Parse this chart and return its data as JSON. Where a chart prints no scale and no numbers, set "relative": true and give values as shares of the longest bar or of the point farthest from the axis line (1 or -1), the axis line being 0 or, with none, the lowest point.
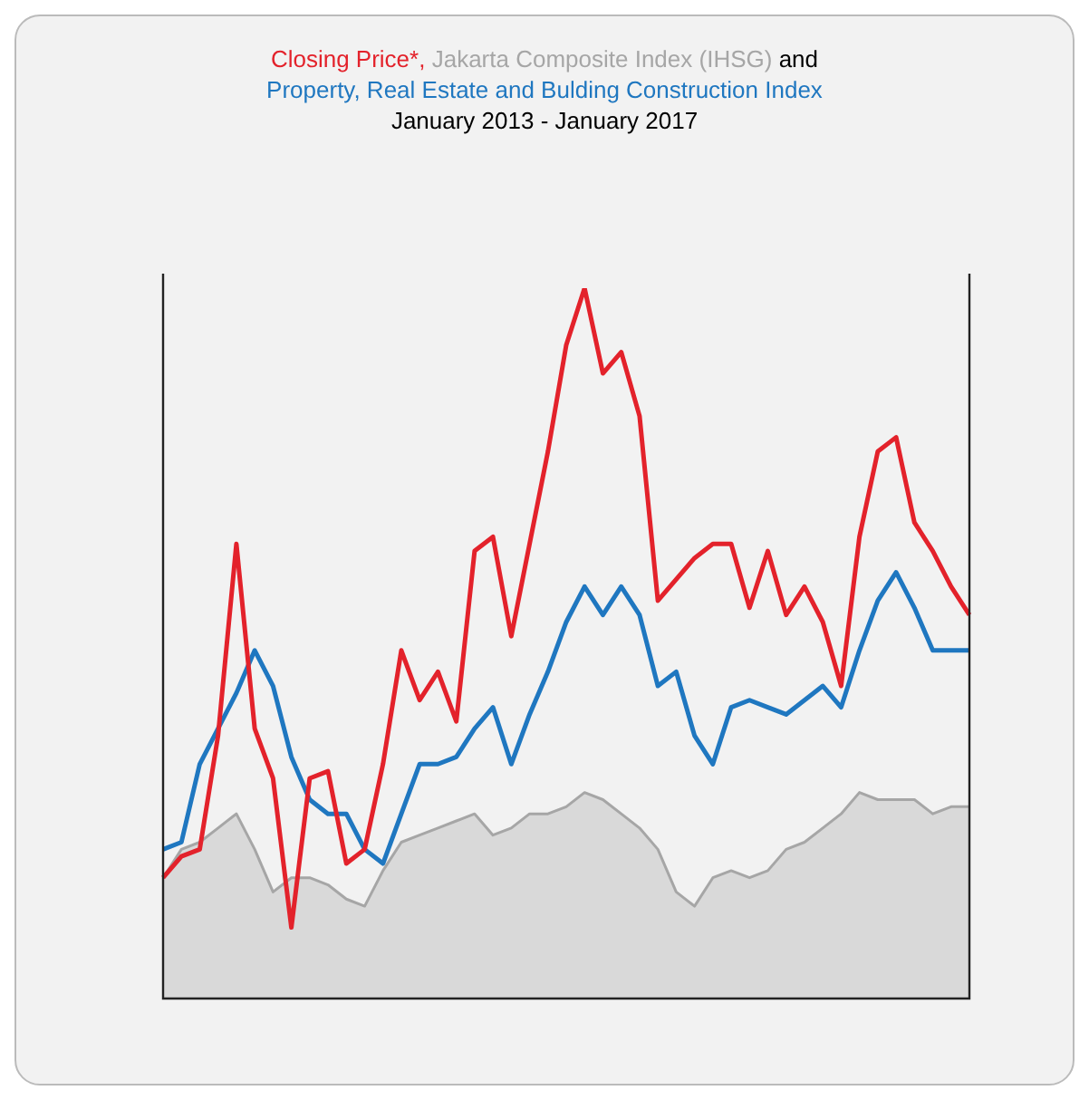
{
  "chart_data": {
    "type": "line",
    "title": "January 2013 - January 2017",
    "legend_title": "and",
    "legend": "top",
    "relative": true,
    "categories": [
      null,
      null,
      null,
      null,
      null,
      null,
      null,
      null,
      null,
      null,
      null,
      null,
      null,
      null,
      null,
      null,
      null,
      null,
      null,
      null,
      null,
      null,
      null,
      null,
      null,
      null,
      null,
      null,
      null,
      null,
      null,
      null,
      null,
      null,
      null,
      null,
      null,
      null,
      null,
      null,
      null,
      null,
      null,
      null,
      null
    ],
    "series": [
      {
        "name": "Closing Price*,",
        "color": "#e3222b",
        "values": [
          0.17,
          0.2,
          0.21,
          0.37,
          0.64,
          0.38,
          0.31,
          0.1,
          0.31,
          0.32,
          0.19,
          0.21,
          0.33,
          0.49,
          0.42,
          0.46,
          0.39,
          0.63,
          0.65,
          0.51,
          0.64,
          0.77,
          0.92,
          1,
          0.88,
          0.91,
          0.82,
          0.56,
          0.59,
          0.62,
          0.64,
          0.64,
          0.55,
          0.63,
          0.54,
          0.58,
          0.53,
          0.44,
          0.65,
          0.77,
          0.79,
          0.67,
          0.63,
          0.58,
          0.54
        ]
      },
      {
        "name": "Jakarta Composite Index (IHSG)",
        "type": "area",
        "color": "#a6a6a6",
        "values": [
          0.17,
          0.21,
          0.22,
          0.24,
          0.26,
          0.21,
          0.15,
          0.17,
          0.17,
          0.16,
          0.14,
          0.13,
          0.18,
          0.22,
          0.23,
          0.24,
          0.25,
          0.26,
          0.23,
          0.24,
          0.26,
          0.26,
          0.27,
          0.29,
          0.28,
          0.26,
          0.24,
          0.21,
          0.15,
          0.13,
          0.17,
          0.18,
          0.17,
          0.18,
          0.21,
          0.22,
          0.24,
          0.26,
          0.29,
          0.28,
          0.28,
          0.28,
          0.26,
          0.27,
          0.27
        ]
      },
      {
        "name": "Property, Real Estate and Bulding Construction Index",
        "color": "#1f77c0",
        "values": [
          0.21,
          0.22,
          0.33,
          0.38,
          0.43,
          0.49,
          0.44,
          0.34,
          0.28,
          0.26,
          0.26,
          0.21,
          0.19,
          0.26,
          0.33,
          0.33,
          0.34,
          0.38,
          0.41,
          0.33,
          0.4,
          0.46,
          0.53,
          0.58,
          0.54,
          0.58,
          0.54,
          0.44,
          0.46,
          0.37,
          0.33,
          0.41,
          0.42,
          0.41,
          0.4,
          0.42,
          0.44,
          0.41,
          0.49,
          0.56,
          0.6,
          0.55,
          0.49,
          0.49,
          0.49
        ]
      }
    ]
  }
}
